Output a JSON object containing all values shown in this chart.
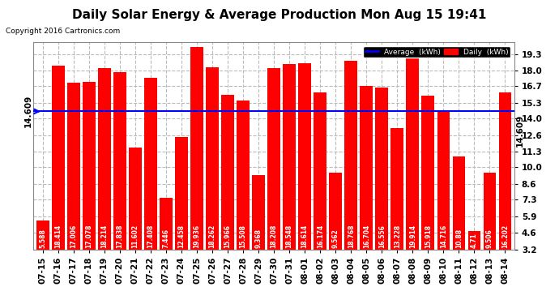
{
  "title": "Daily Solar Energy & Average Production Mon Aug 15 19:41",
  "copyright": "Copyright 2016 Cartronics.com",
  "categories": [
    "07-15",
    "07-16",
    "07-17",
    "07-18",
    "07-19",
    "07-20",
    "07-21",
    "07-22",
    "07-23",
    "07-24",
    "07-25",
    "07-26",
    "07-27",
    "07-28",
    "07-29",
    "07-30",
    "07-31",
    "08-01",
    "08-02",
    "08-03",
    "08-04",
    "08-05",
    "08-06",
    "08-07",
    "08-08",
    "08-09",
    "08-10",
    "08-11",
    "08-12",
    "08-13",
    "08-14"
  ],
  "values": [
    5.588,
    18.414,
    17.006,
    17.078,
    18.214,
    17.838,
    11.602,
    17.408,
    7.446,
    12.458,
    19.936,
    18.262,
    15.966,
    15.508,
    9.368,
    18.208,
    18.548,
    18.614,
    16.174,
    9.562,
    18.768,
    16.704,
    16.556,
    13.228,
    19.914,
    15.918,
    14.716,
    10.88,
    4.71,
    9.506,
    16.202
  ],
  "average": 14.609,
  "bar_color": "#ff0000",
  "avg_line_color": "#0000ff",
  "background_color": "#ffffff",
  "grid_color": "#bbbbbb",
  "yticks": [
    3.2,
    4.6,
    5.9,
    7.3,
    8.6,
    10.0,
    11.3,
    12.6,
    14.0,
    15.3,
    16.7,
    18.0,
    19.3
  ],
  "ymin": 3.2,
  "ymax": 20.3,
  "legend_avg_label": "Average  (kWh)",
  "legend_daily_label": "Daily  (kWh)",
  "avg_label": "14.609",
  "title_fontsize": 11,
  "bar_label_fontsize": 5.5,
  "tick_fontsize": 7.5,
  "avg_annotation_fontsize": 7.5
}
